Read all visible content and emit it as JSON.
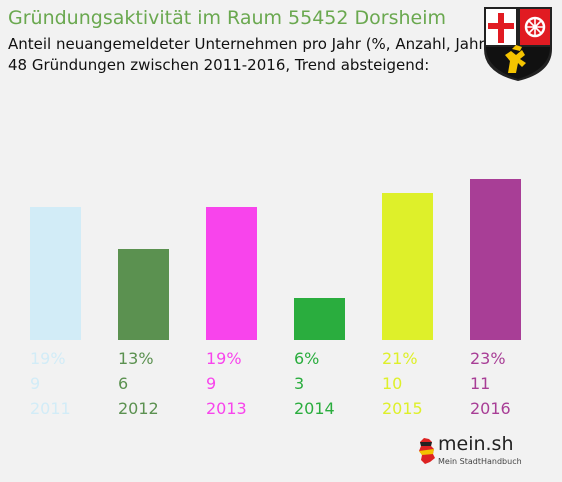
{
  "title": "Gründungsaktivität im Raum 55452 Dorsheim",
  "subtitle_line1": "Anteil neuangemeldeter Unternehmen pro Jahr (%, Anzahl, Jahr)",
  "subtitle_line2": "48 Gründungen zwischen 2011-2016, Trend absteigend:",
  "logo": {
    "name": "mein.sh",
    "tagline": "Mein StadtHandbuch"
  },
  "crest_icon": "rheinland-pfalz-coat-of-arms",
  "chart_data": {
    "type": "bar",
    "categories": [
      "2011",
      "2012",
      "2013",
      "2014",
      "2015",
      "2016"
    ],
    "values": [
      19,
      13,
      19,
      6,
      21,
      23
    ],
    "value_labels": [
      "19%",
      "13%",
      "19%",
      "6%",
      "21%",
      "23%"
    ],
    "counts": [
      9,
      6,
      9,
      3,
      10,
      11
    ],
    "colors": [
      "#d2ecf7",
      "#5b9150",
      "#f844ec",
      "#2aad3e",
      "#def02a",
      "#a83e96"
    ],
    "ylim": [
      0,
      23
    ],
    "grid": false,
    "legend": "none"
  }
}
